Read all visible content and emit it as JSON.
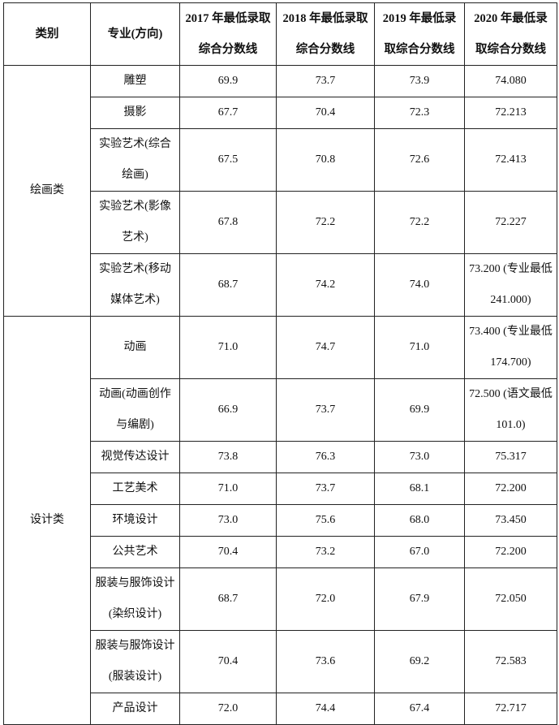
{
  "headers": [
    "类别",
    "专业(方向)",
    "2017 年最低录取综合分数线",
    "2018 年最低录取综合分数线",
    "2019 年最低录取综合分数线",
    "2020 年最低录取综合分数线"
  ],
  "groups": [
    {
      "category": "绘画类",
      "rows": [
        {
          "major": "雕塑",
          "v2017": "69.9",
          "v2018": "73.7",
          "v2019": "73.9",
          "v2020": "74.080"
        },
        {
          "major": "摄影",
          "v2017": "67.7",
          "v2018": "70.4",
          "v2019": "72.3",
          "v2020": "72.213"
        },
        {
          "major": "实验艺术(综合绘画)",
          "v2017": "67.5",
          "v2018": "70.8",
          "v2019": "72.6",
          "v2020": "72.413"
        },
        {
          "major": "实验艺术(影像艺术)",
          "v2017": "67.8",
          "v2018": "72.2",
          "v2019": "72.2",
          "v2020": "72.227"
        },
        {
          "major": "实验艺术(移动媒体艺术)",
          "v2017": "68.7",
          "v2018": "74.2",
          "v2019": "74.0",
          "v2020": "73.200 (专业最低 241.000)"
        }
      ]
    },
    {
      "category": "设计类",
      "rows": [
        {
          "major": "动画",
          "v2017": "71.0",
          "v2018": "74.7",
          "v2019": "71.0",
          "v2020": "73.400 (专业最低 174.700)"
        },
        {
          "major": "动画(动画创作与编剧)",
          "v2017": "66.9",
          "v2018": "73.7",
          "v2019": "69.9",
          "v2020": "72.500 (语文最低 101.0)"
        },
        {
          "major": "视觉传达设计",
          "v2017": "73.8",
          "v2018": "76.3",
          "v2019": "73.0",
          "v2020": "75.317"
        },
        {
          "major": "工艺美术",
          "v2017": "71.0",
          "v2018": "73.7",
          "v2019": "68.1",
          "v2020": "72.200"
        },
        {
          "major": "环境设计",
          "v2017": "73.0",
          "v2018": "75.6",
          "v2019": "68.0",
          "v2020": "73.450"
        },
        {
          "major": "公共艺术",
          "v2017": "70.4",
          "v2018": "73.2",
          "v2019": "67.0",
          "v2020": "72.200"
        },
        {
          "major": "服装与服饰设计(染织设计)",
          "v2017": "68.7",
          "v2018": "72.0",
          "v2019": "67.9",
          "v2020": "72.050"
        },
        {
          "major": "服装与服饰设计(服装设计)",
          "v2017": "70.4",
          "v2018": "73.6",
          "v2019": "69.2",
          "v2020": "72.583"
        },
        {
          "major": "产品设计",
          "v2017": "72.0",
          "v2018": "74.4",
          "v2019": "67.4",
          "v2020": "72.717"
        }
      ]
    }
  ]
}
